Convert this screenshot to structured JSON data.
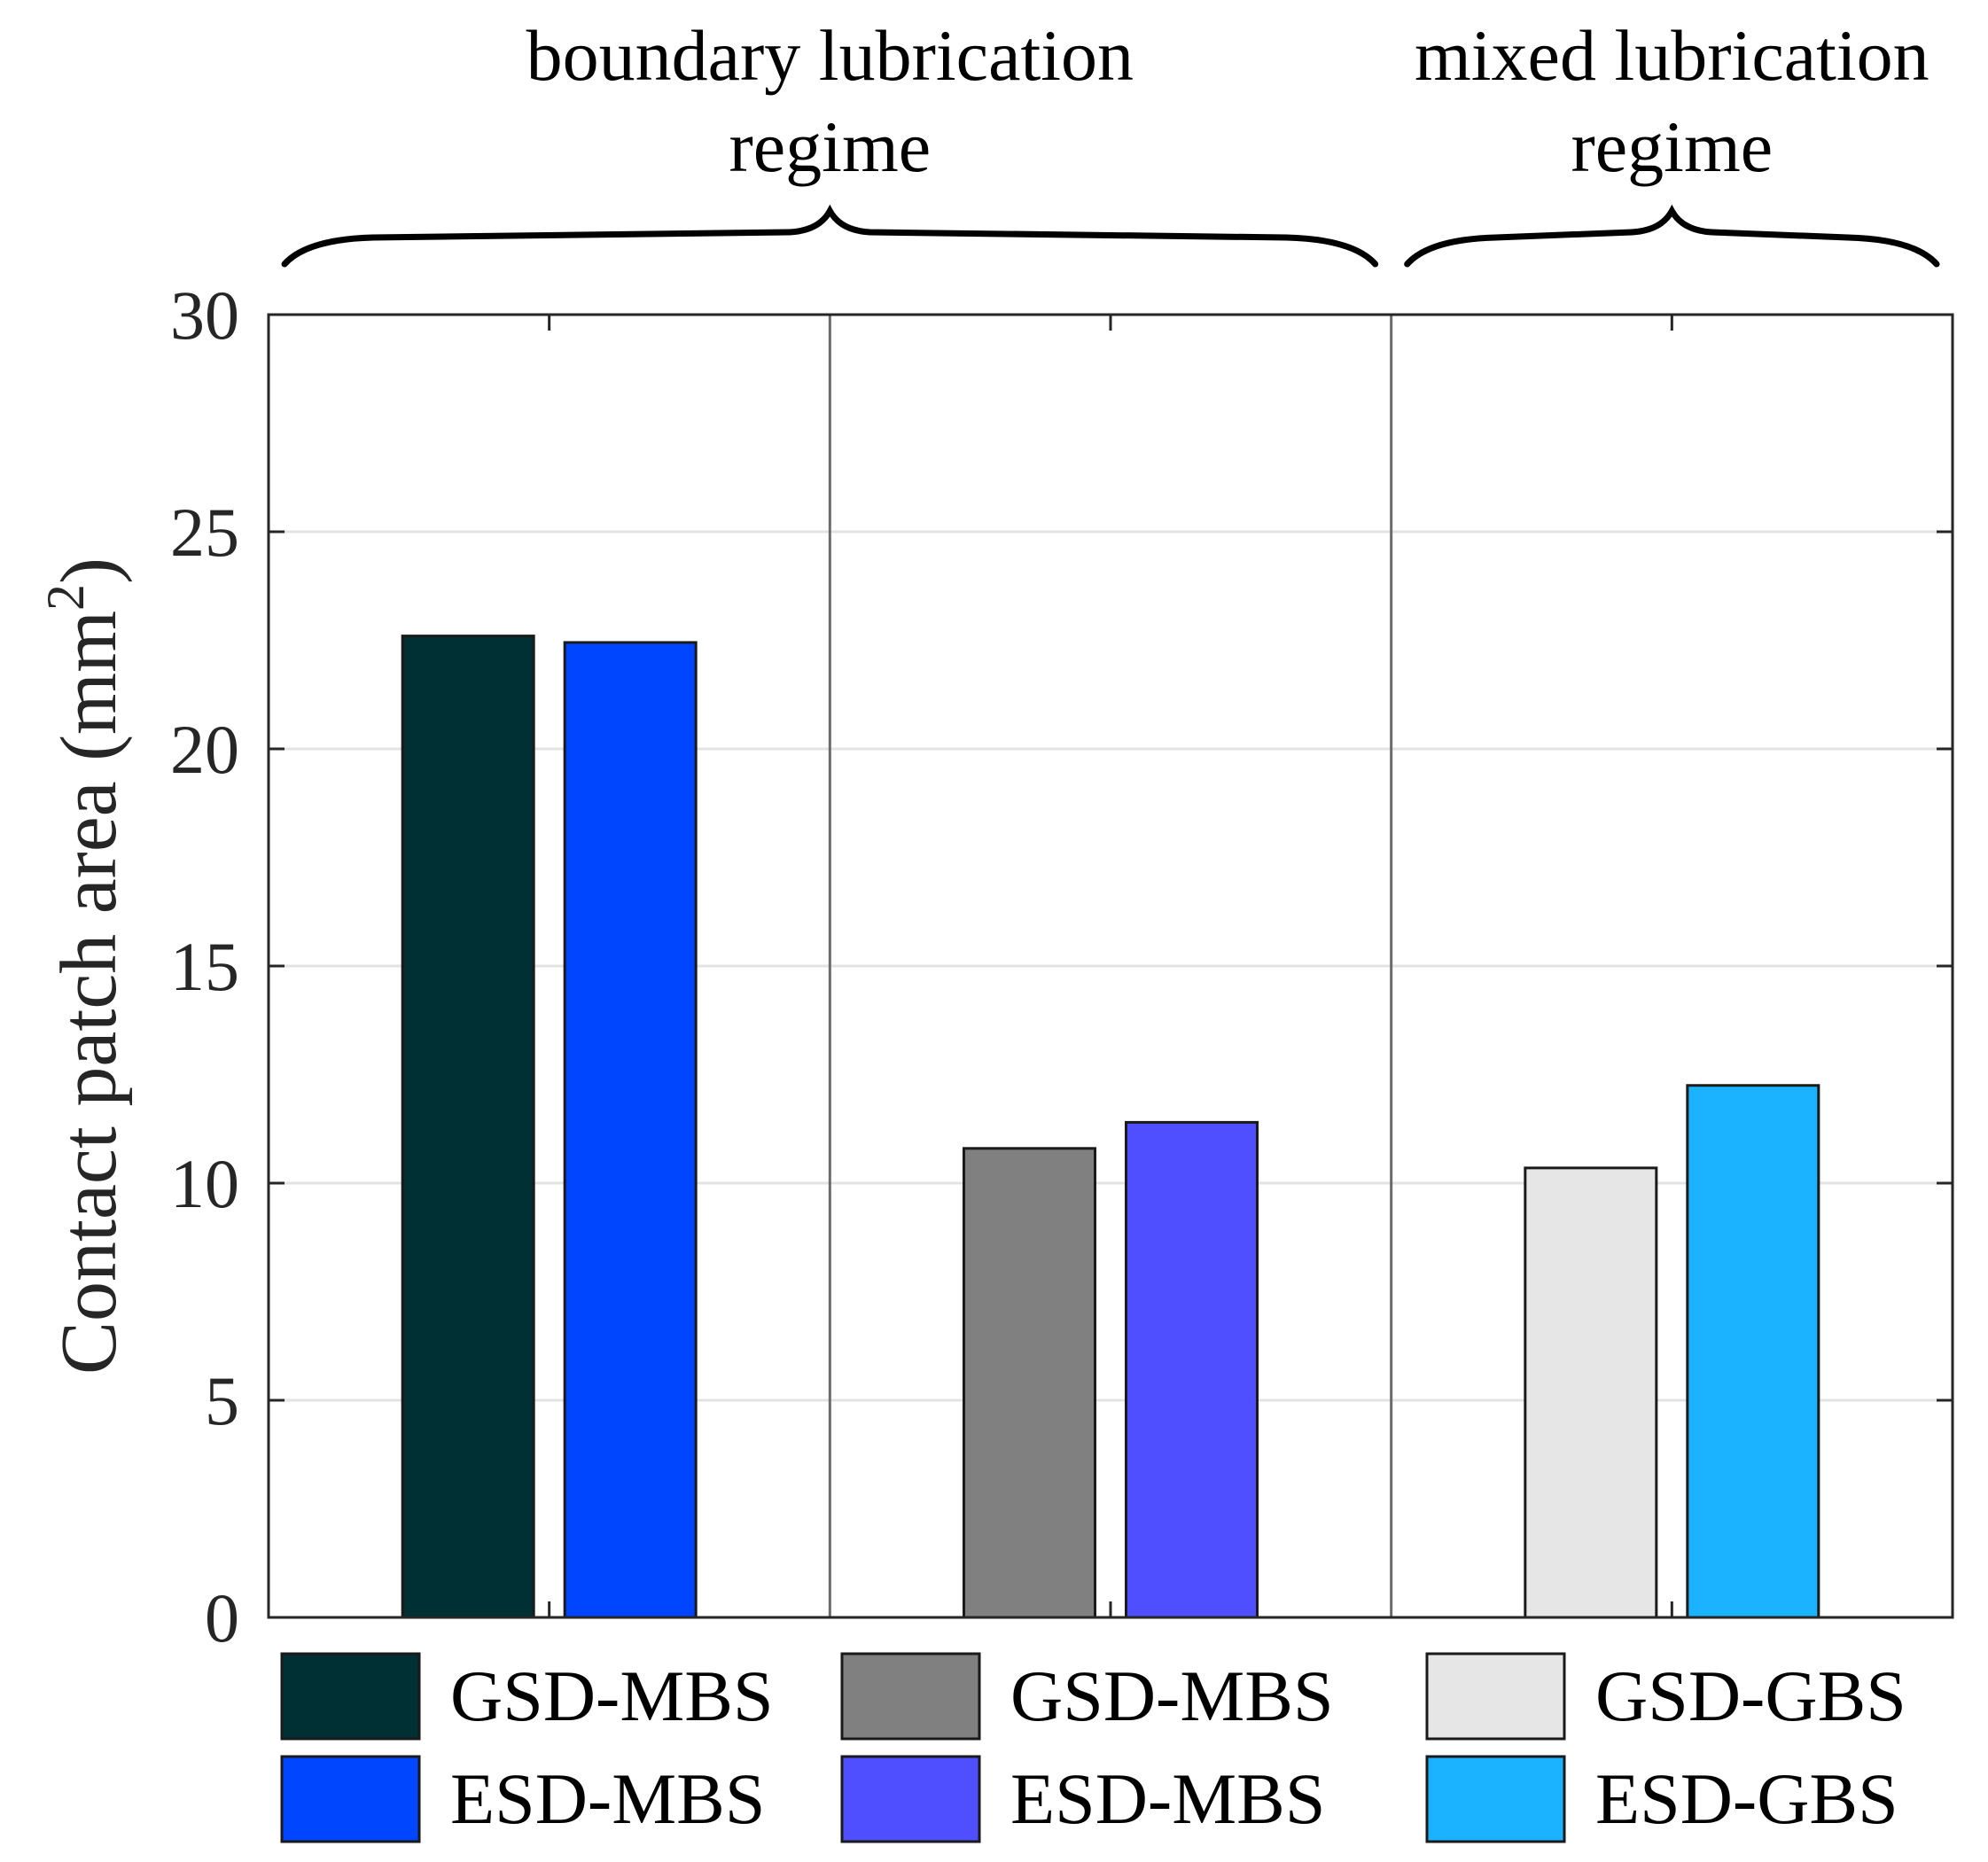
{
  "chart_data": {
    "type": "bar",
    "title": "",
    "xlabel": "",
    "ylabel": "Contact patch area (mm",
    "ylabel_superscript": "2",
    "ylabel_close": ")",
    "ylim": [
      0,
      30
    ],
    "yticks": [
      "0",
      "5",
      "10",
      "15",
      "20",
      "25",
      "30"
    ],
    "grid": "horizontal",
    "regime_annotations": [
      {
        "line1": "boundary lubrication",
        "line2": "regime",
        "spans_groups": [
          0,
          1
        ]
      },
      {
        "line1": "mixed lubrication",
        "line2": "regime",
        "spans_groups": [
          2
        ]
      }
    ],
    "groups": [
      {
        "bars": [
          {
            "label": "GSD-MBS",
            "value": 22.6,
            "color": "#003033"
          },
          {
            "label": "ESD-MBS",
            "value": 22.45,
            "color": "#0045FF"
          }
        ]
      },
      {
        "bars": [
          {
            "label": "GSD-MBS",
            "value": 10.8,
            "color": "#808080"
          },
          {
            "label": "ESD-MBS",
            "value": 11.4,
            "color": "#4F4FFF"
          }
        ]
      },
      {
        "bars": [
          {
            "label": "GSD-GBS",
            "value": 10.35,
            "color": "#E6E6E6"
          },
          {
            "label": "ESD-GBS",
            "value": 12.25,
            "color": "#1BB2FF"
          }
        ]
      }
    ],
    "legend": {
      "placement": "bottom",
      "columns": 3,
      "entries": [
        {
          "label": "GSD-MBS",
          "color": "#003033"
        },
        {
          "label": "ESD-MBS",
          "color": "#0045FF"
        },
        {
          "label": "GSD-MBS",
          "color": "#808080"
        },
        {
          "label": "ESD-MBS",
          "color": "#4F4FFF"
        },
        {
          "label": "GSD-GBS",
          "color": "#E6E6E6"
        },
        {
          "label": "ESD-GBS",
          "color": "#1BB2FF"
        }
      ]
    }
  }
}
